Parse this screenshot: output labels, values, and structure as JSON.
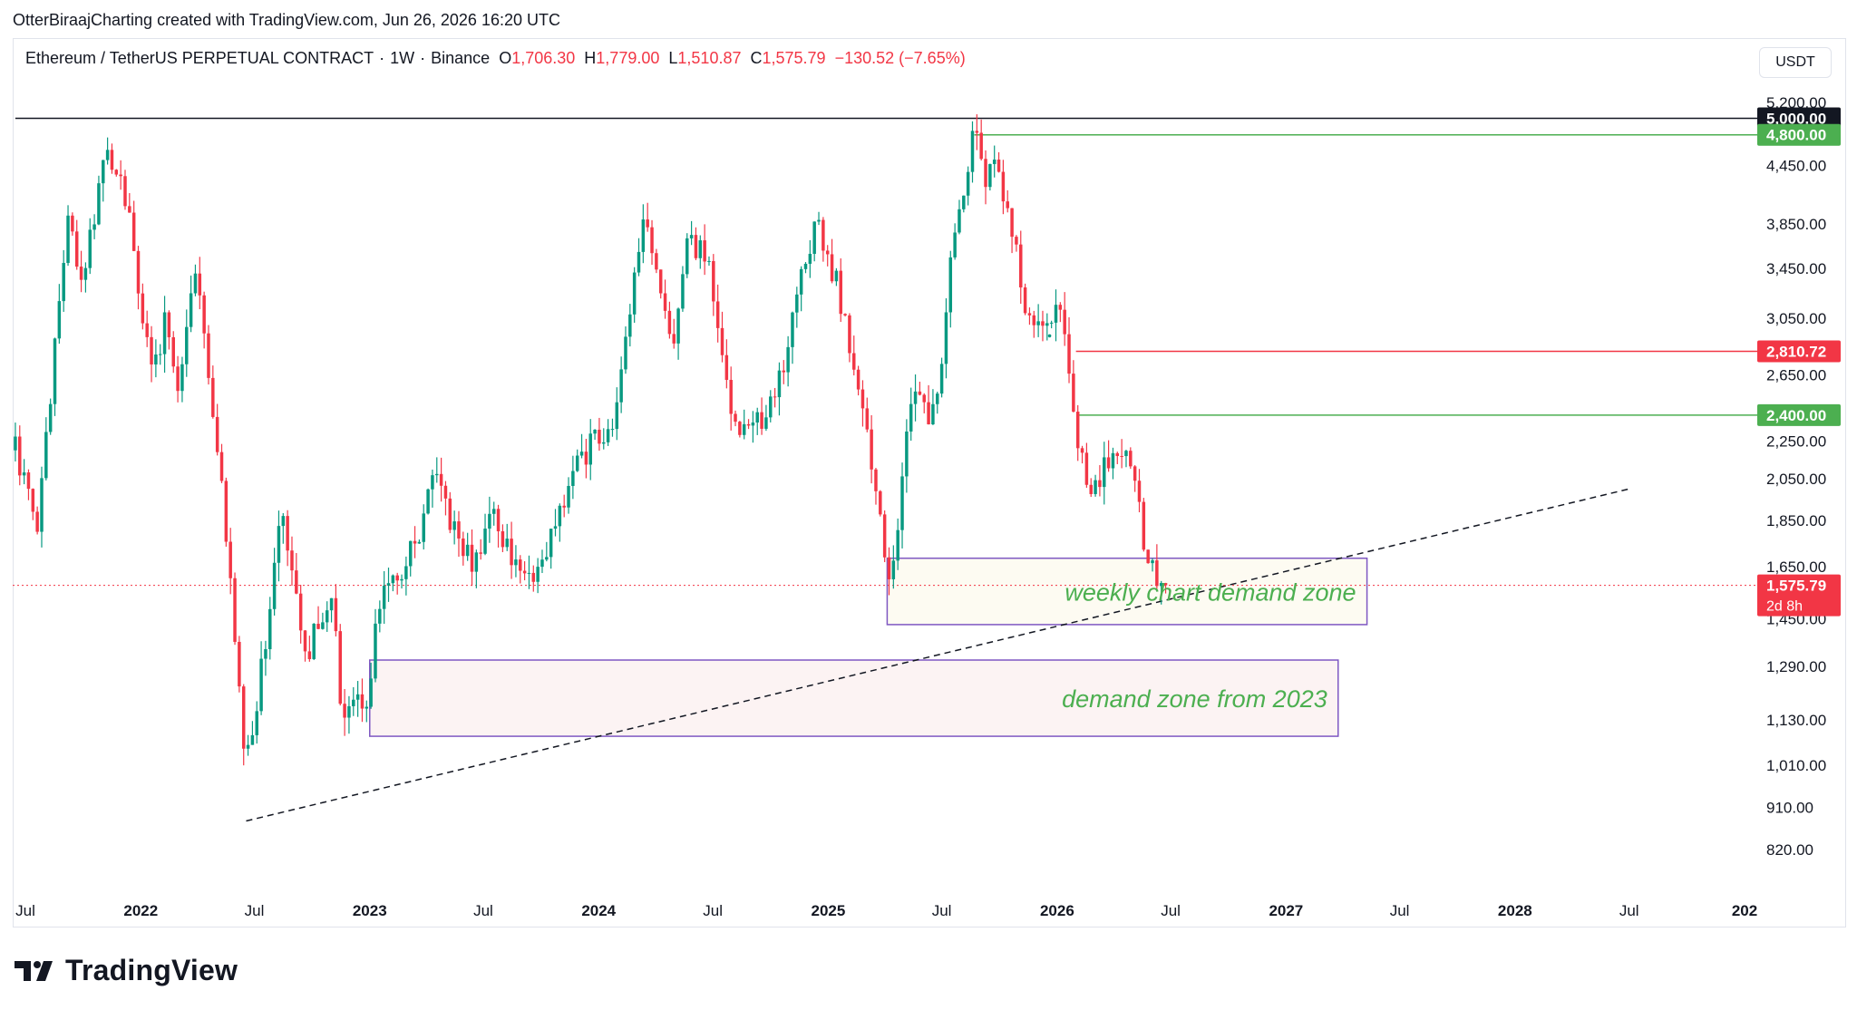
{
  "caption": "OtterBiraajCharting created with TradingView.com, Jun 26, 2026 16:20 UTC",
  "symbol": {
    "name": "Ethereum / TetherUS PERPETUAL CONTRACT",
    "interval": "1W",
    "exchange": "Binance",
    "open_label": "O",
    "open": "1,706.30",
    "high_label": "H",
    "high": "1,779.00",
    "low_label": "L",
    "low": "1,510.87",
    "close_label": "C",
    "close": "1,575.79",
    "change": "−130.52 (−7.65%)"
  },
  "currency": "USDT",
  "brand": "TradingView",
  "colors": {
    "up": "#089981",
    "down": "#f23645",
    "green_level": "#4caf50",
    "red_level": "#f23645",
    "zone_border": "#7e57c2",
    "annotation": "#4caf50"
  },
  "chart_data": {
    "type": "candlestick",
    "y_scale": "log",
    "ylim": [
      760,
      5300
    ],
    "xlim": [
      "2021-06-15",
      "2028-12-31"
    ],
    "y_ticks": [
      5200,
      4450,
      3850,
      3450,
      3050,
      2650,
      2250,
      2050,
      1850,
      1650,
      1450,
      1290,
      1130,
      1010,
      910,
      820
    ],
    "y_tick_labels": [
      "5,200.00",
      "4,450.00",
      "3,850.00",
      "3,450.00",
      "3,050.00",
      "2,650.00",
      "2,250.00",
      "2,050.00",
      "1,850.00",
      "1,650.00",
      "1,450.00",
      "1,290.00",
      "1,130.00",
      "1,010.00",
      "910.00",
      "820.00"
    ],
    "x_ticks": [
      {
        "label": "Jul",
        "date": "2021-07-01",
        "year": false
      },
      {
        "label": "2022",
        "date": "2022-01-01",
        "year": true
      },
      {
        "label": "Jul",
        "date": "2022-07-01",
        "year": false
      },
      {
        "label": "2023",
        "date": "2023-01-01",
        "year": true
      },
      {
        "label": "Jul",
        "date": "2023-07-01",
        "year": false
      },
      {
        "label": "2024",
        "date": "2024-01-01",
        "year": true
      },
      {
        "label": "Jul",
        "date": "2024-07-01",
        "year": false
      },
      {
        "label": "2025",
        "date": "2025-01-01",
        "year": true
      },
      {
        "label": "Jul",
        "date": "2025-07-01",
        "year": false
      },
      {
        "label": "2026",
        "date": "2026-01-01",
        "year": true
      },
      {
        "label": "Jul",
        "date": "2026-07-01",
        "year": false
      },
      {
        "label": "2027",
        "date": "2027-01-01",
        "year": true
      },
      {
        "label": "Jul",
        "date": "2027-07-01",
        "year": false
      },
      {
        "label": "2028",
        "date": "2028-01-01",
        "year": true
      },
      {
        "label": "Jul",
        "date": "2028-07-01",
        "year": false
      },
      {
        "label": "202",
        "date": "2029-01-01",
        "year": true
      }
    ],
    "waypoints": [
      [
        "2021-06-15",
        2200
      ],
      [
        "2021-07-20",
        1800
      ],
      [
        "2021-09-05",
        3900
      ],
      [
        "2021-10-01",
        3400
      ],
      [
        "2021-11-10",
        4700
      ],
      [
        "2021-12-10",
        4000
      ],
      [
        "2022-01-20",
        2600
      ],
      [
        "2022-02-10",
        3100
      ],
      [
        "2022-03-01",
        2600
      ],
      [
        "2022-04-01",
        3500
      ],
      [
        "2022-05-10",
        2000
      ],
      [
        "2022-06-18",
        1000
      ],
      [
        "2022-07-20",
        1400
      ],
      [
        "2022-08-15",
        1900
      ],
      [
        "2022-09-20",
        1300
      ],
      [
        "2022-11-05",
        1600
      ],
      [
        "2022-11-15",
        1150
      ],
      [
        "2022-12-31",
        1200
      ],
      [
        "2023-01-20",
        1600
      ],
      [
        "2023-02-20",
        1650
      ],
      [
        "2023-03-20",
        1750
      ],
      [
        "2023-04-15",
        2100
      ],
      [
        "2023-05-15",
        1800
      ],
      [
        "2023-06-15",
        1650
      ],
      [
        "2023-07-15",
        1900
      ],
      [
        "2023-08-20",
        1650
      ],
      [
        "2023-09-15",
        1580
      ],
      [
        "2023-10-20",
        1800
      ],
      [
        "2023-11-15",
        2050
      ],
      [
        "2023-12-30",
        2300
      ],
      [
        "2024-01-20",
        2250
      ],
      [
        "2024-03-12",
        4000
      ],
      [
        "2024-04-18",
        3000
      ],
      [
        "2024-05-01",
        2900
      ],
      [
        "2024-05-25",
        3800
      ],
      [
        "2024-06-25",
        3400
      ],
      [
        "2024-08-05",
        2300
      ],
      [
        "2024-09-10",
        2350
      ],
      [
        "2024-10-10",
        2500
      ],
      [
        "2024-11-10",
        3200
      ],
      [
        "2024-12-12",
        3900
      ],
      [
        "2025-01-15",
        3300
      ],
      [
        "2025-02-15",
        2700
      ],
      [
        "2025-03-20",
        1950
      ],
      [
        "2025-04-10",
        1550
      ],
      [
        "2025-05-12",
        2500
      ],
      [
        "2025-06-20",
        2400
      ],
      [
        "2025-07-20",
        3700
      ],
      [
        "2025-08-22",
        4800
      ],
      [
        "2025-09-10",
        4300
      ],
      [
        "2025-09-20",
        4500
      ],
      [
        "2025-10-15",
        4000
      ],
      [
        "2025-11-05",
        3300
      ],
      [
        "2025-11-25",
        2900
      ],
      [
        "2025-12-20",
        3000
      ],
      [
        "2026-01-10",
        3100
      ],
      [
        "2026-01-31",
        2350
      ],
      [
        "2026-02-20",
        1950
      ],
      [
        "2026-03-15",
        2100
      ],
      [
        "2026-04-10",
        2250
      ],
      [
        "2026-05-01",
        2100
      ],
      [
        "2026-05-20",
        1750
      ],
      [
        "2026-06-10",
        1620
      ],
      [
        "2026-06-26",
        1575.79
      ]
    ],
    "levels": [
      {
        "value": 5000,
        "label": "5,000.00",
        "color": "#131722",
        "from": "2021-06-15"
      },
      {
        "value": 4800,
        "label": "4,800.00",
        "color": "#4caf50",
        "from": "2025-08-22"
      },
      {
        "value": 2810.72,
        "label": "2,810.72",
        "color": "#f23645",
        "from": "2026-01-31"
      },
      {
        "value": 2400,
        "label": "2,400.00",
        "color": "#4caf50",
        "from": "2026-02-05"
      }
    ],
    "current_price": {
      "value": 1575.79,
      "label": "1,575.79",
      "countdown": "2d 8h"
    },
    "zones": [
      {
        "name": "weekly chart demand zone",
        "x0": "2025-04-05",
        "x1": "2027-05-10",
        "y0": 1430,
        "y1": 1685
      },
      {
        "name": "demand zone from 2023",
        "x0": "2023-01-01",
        "x1": "2027-03-25",
        "y0": 1085,
        "y1": 1310
      }
    ],
    "trendline": {
      "x0": "2022-06-18",
      "y0": 880,
      "x1": "2028-07-01",
      "y1": 2000
    },
    "crosshair_dot": {
      "x": "2025-12-20",
      "y": 2920
    }
  }
}
